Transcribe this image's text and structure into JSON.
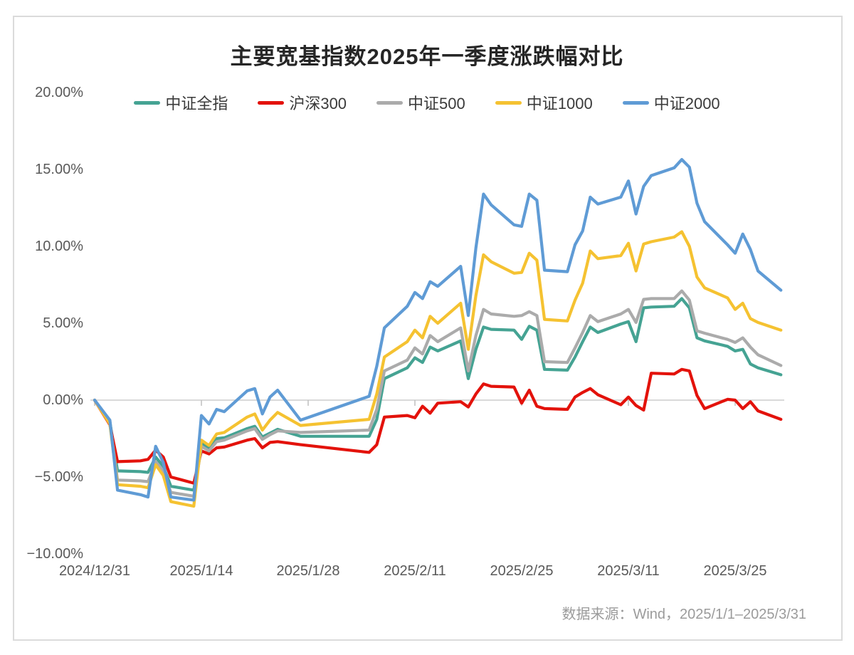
{
  "chart_data": {
    "type": "line",
    "title": "主要宽基指数2025年一季度涨跌幅对比",
    "source_note": "数据来源：Wind，2025/1/1–2025/3/31",
    "unit": "%",
    "grid": "zero-line-only",
    "legend_position": "top-center",
    "y_axis": {
      "min": -10,
      "max": 20,
      "tick_labels": [
        "20.00%",
        "15.00%",
        "10.00%",
        "5.00%",
        "0.00%",
        "−5.00%",
        "−10.00%"
      ],
      "tick_values": [
        20,
        15,
        10,
        5,
        0,
        -5,
        -10
      ]
    },
    "x_axis": {
      "tick_labels": [
        "2024/12/31",
        "2025/1/14",
        "2025/1/28",
        "2025/2/11",
        "2025/2/25",
        "2025/3/11",
        "2025/3/25"
      ],
      "tick_day_offsets": [
        0,
        14,
        28,
        42,
        56,
        70,
        84
      ]
    },
    "dates": [
      "2024/12/31",
      "2025/1/2",
      "2025/1/3",
      "2025/1/6",
      "2025/1/7",
      "2025/1/8",
      "2025/1/9",
      "2025/1/10",
      "2025/1/13",
      "2025/1/14",
      "2025/1/15",
      "2025/1/16",
      "2025/1/17",
      "2025/1/20",
      "2025/1/21",
      "2025/1/22",
      "2025/1/23",
      "2025/1/24",
      "2025/1/27",
      "2025/2/5",
      "2025/2/6",
      "2025/2/7",
      "2025/2/10",
      "2025/2/11",
      "2025/2/12",
      "2025/2/13",
      "2025/2/14",
      "2025/2/17",
      "2025/2/18",
      "2025/2/19",
      "2025/2/20",
      "2025/2/21",
      "2025/2/24",
      "2025/2/25",
      "2025/2/26",
      "2025/2/27",
      "2025/2/28",
      "2025/3/3",
      "2025/3/4",
      "2025/3/5",
      "2025/3/6",
      "2025/3/7",
      "2025/3/10",
      "2025/3/11",
      "2025/3/12",
      "2025/3/13",
      "2025/3/14",
      "2025/3/17",
      "2025/3/18",
      "2025/3/19",
      "2025/3/20",
      "2025/3/21",
      "2025/3/24",
      "2025/3/25",
      "2025/3/26",
      "2025/3/27",
      "2025/3/28",
      "2025/3/31"
    ],
    "day_offsets": [
      0,
      2,
      3,
      6,
      7,
      8,
      9,
      10,
      13,
      14,
      15,
      16,
      17,
      20,
      21,
      22,
      23,
      24,
      27,
      36,
      37,
      38,
      41,
      42,
      43,
      44,
      45,
      48,
      49,
      50,
      51,
      52,
      55,
      56,
      57,
      58,
      59,
      62,
      63,
      64,
      65,
      66,
      69,
      70,
      71,
      72,
      73,
      76,
      77,
      78,
      79,
      80,
      83,
      84,
      85,
      86,
      87,
      90
    ],
    "series": [
      {
        "name": "中证全指",
        "color": "#45a393",
        "values": [
          0,
          -1.4,
          -4.6,
          -4.65,
          -4.7,
          -3.7,
          -4.3,
          -5.6,
          -5.85,
          -2.8,
          -3.1,
          -2.5,
          -2.45,
          -1.85,
          -1.7,
          -2.4,
          -2.15,
          -1.9,
          -2.35,
          -2.35,
          -1.25,
          1.4,
          2.1,
          2.75,
          2.45,
          3.45,
          3.2,
          3.85,
          1.4,
          3.3,
          4.75,
          4.6,
          4.55,
          3.95,
          4.8,
          4.55,
          2.0,
          1.95,
          2.8,
          3.8,
          4.75,
          4.4,
          4.95,
          5.1,
          3.8,
          6.0,
          6.05,
          6.1,
          6.6,
          6.0,
          4.05,
          3.85,
          3.5,
          3.2,
          3.3,
          2.35,
          2.1,
          1.65
        ]
      },
      {
        "name": "沪深300",
        "color": "#e3120b",
        "values": [
          0,
          -1.6,
          -4.0,
          -3.95,
          -3.85,
          -3.25,
          -3.7,
          -5.0,
          -5.4,
          -3.3,
          -3.5,
          -3.1,
          -3.05,
          -2.6,
          -2.5,
          -3.1,
          -2.75,
          -2.7,
          -2.9,
          -3.4,
          -2.9,
          -1.1,
          -1.0,
          -1.15,
          -0.4,
          -0.85,
          -0.2,
          -0.1,
          -0.45,
          0.4,
          1.05,
          0.9,
          0.85,
          -0.2,
          0.65,
          -0.4,
          -0.55,
          -0.6,
          0.2,
          0.5,
          0.75,
          0.35,
          -0.3,
          0.2,
          -0.35,
          -0.65,
          1.75,
          1.7,
          2.0,
          1.9,
          0.3,
          -0.55,
          0.05,
          0.0,
          -0.55,
          -0.1,
          -0.7,
          -1.25
        ]
      },
      {
        "name": "中证500",
        "color": "#ababab",
        "values": [
          0,
          -1.5,
          -5.2,
          -5.25,
          -5.3,
          -4.0,
          -4.6,
          -6.0,
          -6.25,
          -3.0,
          -3.3,
          -2.7,
          -2.6,
          -2.0,
          -1.85,
          -2.55,
          -2.25,
          -2.0,
          -2.1,
          -1.95,
          -0.6,
          1.9,
          2.6,
          3.4,
          3.0,
          4.2,
          3.8,
          4.7,
          1.9,
          4.2,
          5.9,
          5.6,
          5.45,
          5.5,
          5.75,
          5.5,
          2.5,
          2.45,
          3.4,
          4.4,
          5.5,
          5.1,
          5.6,
          5.9,
          5.05,
          6.55,
          6.6,
          6.6,
          7.1,
          6.5,
          4.5,
          4.35,
          3.95,
          3.75,
          4.05,
          3.45,
          2.95,
          2.25
        ]
      },
      {
        "name": "中证1000",
        "color": "#f5c231",
        "values": [
          0,
          -1.55,
          -5.5,
          -5.6,
          -5.7,
          -4.2,
          -4.9,
          -6.6,
          -6.9,
          -2.6,
          -2.95,
          -2.2,
          -2.1,
          -1.1,
          -0.9,
          -1.95,
          -1.3,
          -0.8,
          -1.65,
          -1.25,
          0.4,
          2.8,
          3.8,
          4.55,
          4.05,
          5.45,
          5.0,
          6.3,
          3.3,
          6.8,
          9.45,
          9.0,
          8.25,
          8.3,
          9.55,
          9.1,
          5.25,
          5.15,
          6.5,
          7.6,
          9.7,
          9.2,
          9.4,
          10.2,
          8.4,
          10.15,
          10.3,
          10.6,
          10.95,
          10.0,
          8.0,
          7.3,
          6.65,
          5.9,
          6.3,
          5.3,
          5.05,
          4.55
        ]
      },
      {
        "name": "中证2000",
        "color": "#5f9bd5",
        "values": [
          0,
          -1.3,
          -5.85,
          -6.15,
          -6.3,
          -3.0,
          -4.05,
          -6.3,
          -6.5,
          -1.0,
          -1.55,
          -0.6,
          -0.75,
          0.6,
          0.75,
          -0.9,
          0.2,
          0.65,
          -1.3,
          0.25,
          2.2,
          4.7,
          6.1,
          7.0,
          6.6,
          7.7,
          7.4,
          8.7,
          5.5,
          9.9,
          13.4,
          12.7,
          11.4,
          11.3,
          13.4,
          13.0,
          8.45,
          8.35,
          10.1,
          11.0,
          13.2,
          12.75,
          13.2,
          14.25,
          12.1,
          13.9,
          14.6,
          15.1,
          15.65,
          15.15,
          12.8,
          11.6,
          10.1,
          9.55,
          10.8,
          9.8,
          8.4,
          7.15
        ]
      }
    ],
    "colors": {
      "zero_gridline": "#d9d9d9",
      "tick_mark": "#bfbfbf",
      "axis_label": "#595959",
      "title_text": "#262626",
      "panel_border": "#dbdbdb"
    }
  }
}
